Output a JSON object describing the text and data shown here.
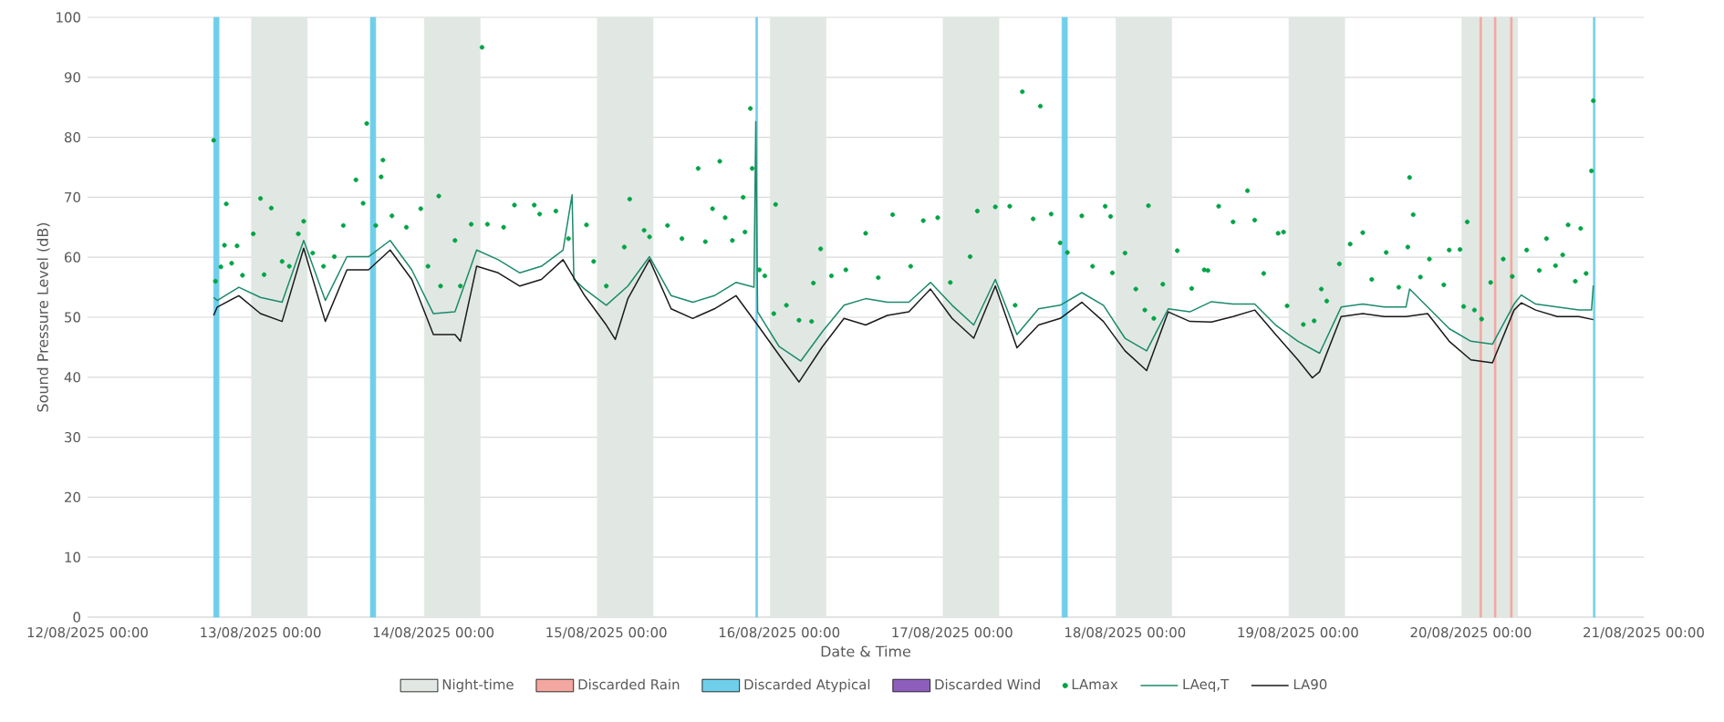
{
  "chart_data": {
    "type": "line",
    "xlabel": "Date & Time",
    "ylabel": "Sound Pressure Level (dB)",
    "xlim": [
      "2025-08-12T00:00",
      "2025-08-21T00:00"
    ],
    "xticks": [
      {
        "value": "2025-08-12T00:00",
        "label": "12/08/2025 00:00"
      },
      {
        "value": "2025-08-13T00:00",
        "label": "13/08/2025 00:00"
      },
      {
        "value": "2025-08-14T00:00",
        "label": "14/08/2025 00:00"
      },
      {
        "value": "2025-08-15T00:00",
        "label": "15/08/2025 00:00"
      },
      {
        "value": "2025-08-16T00:00",
        "label": "16/08/2025 00:00"
      },
      {
        "value": "2025-08-17T00:00",
        "label": "17/08/2025 00:00"
      },
      {
        "value": "2025-08-18T00:00",
        "label": "18/08/2025 00:00"
      },
      {
        "value": "2025-08-19T00:00",
        "label": "19/08/2025 00:00"
      },
      {
        "value": "2025-08-20T00:00",
        "label": "20/08/2025 00:00"
      },
      {
        "value": "2025-08-21T00:00",
        "label": "21/08/2025 00:00"
      }
    ],
    "ylim": [
      0,
      100
    ],
    "yticks": [
      0,
      10,
      20,
      30,
      40,
      50,
      60,
      70,
      80,
      90,
      100
    ],
    "grid": "y",
    "legend": "bottom",
    "bands": [
      {
        "axis": "x",
        "from": "2025-08-12T22:45",
        "to": "2025-08-13T06:30",
        "label": "Night-time",
        "color": "#e1e8e3"
      },
      {
        "axis": "x",
        "from": "2025-08-13T22:45",
        "to": "2025-08-14T06:30",
        "color": "#e1e8e3"
      },
      {
        "axis": "x",
        "from": "2025-08-14T22:45",
        "to": "2025-08-15T06:30",
        "color": "#e1e8e3"
      },
      {
        "axis": "x",
        "from": "2025-08-15T22:45",
        "to": "2025-08-16T06:30",
        "color": "#e1e8e3"
      },
      {
        "axis": "x",
        "from": "2025-08-16T22:45",
        "to": "2025-08-17T06:30",
        "color": "#e1e8e3"
      },
      {
        "axis": "x",
        "from": "2025-08-17T22:45",
        "to": "2025-08-18T06:30",
        "color": "#e1e8e3"
      },
      {
        "axis": "x",
        "from": "2025-08-18T22:45",
        "to": "2025-08-19T06:30",
        "color": "#e1e8e3"
      },
      {
        "axis": "x",
        "from": "2025-08-19T22:45",
        "to": "2025-08-20T06:30",
        "color": "#e1e8e3"
      },
      {
        "axis": "x",
        "from": "2025-08-20T01:15",
        "to": "2025-08-20T01:30",
        "label": "Discarded Rain",
        "color": "#f4a6a0"
      },
      {
        "axis": "x",
        "from": "2025-08-20T03:15",
        "to": "2025-08-20T03:30",
        "color": "#f4a6a0"
      },
      {
        "axis": "x",
        "from": "2025-08-20T05:30",
        "to": "2025-08-20T05:45",
        "color": "#f4a6a0"
      },
      {
        "axis": "x",
        "from": "2025-08-12T17:30",
        "to": "2025-08-12T18:15",
        "label": "Discarded Atypical",
        "color": "#6fcfeb"
      },
      {
        "axis": "x",
        "from": "2025-08-13T15:15",
        "to": "2025-08-13T16:00",
        "color": "#6fcfeb"
      },
      {
        "axis": "x",
        "from": "2025-08-15T20:45",
        "to": "2025-08-15T21:00",
        "color": "#6fcfeb"
      },
      {
        "axis": "x",
        "from": "2025-08-17T15:15",
        "to": "2025-08-17T16:00",
        "color": "#6fcfeb"
      },
      {
        "axis": "x",
        "from": "2025-08-20T17:00",
        "to": "2025-08-20T17:15",
        "color": "#6fcfeb"
      }
    ],
    "series": [
      {
        "name": "Discarded Wind",
        "type": "bar",
        "color": "#8e5ebd"
      },
      {
        "name": "LAmax",
        "type": "scatter",
        "marker": "circle",
        "color": "#00a345",
        "x": [
          "2025-08-12T17:30",
          "2025-08-12T17:45",
          "2025-08-12T18:30",
          "2025-08-12T19:00",
          "2025-08-12T19:15",
          "2025-08-12T20:00",
          "2025-08-12T20:45",
          "2025-08-12T21:30",
          "2025-08-12T23:00",
          "2025-08-13T00:00",
          "2025-08-13T00:30",
          "2025-08-13T01:30",
          "2025-08-13T03:00",
          "2025-08-13T04:00",
          "2025-08-13T05:15",
          "2025-08-13T06:00",
          "2025-08-13T07:15",
          "2025-08-13T08:45",
          "2025-08-13T10:15",
          "2025-08-13T11:30",
          "2025-08-13T13:15",
          "2025-08-13T14:15",
          "2025-08-13T14:45",
          "2025-08-13T16:00",
          "2025-08-13T16:45",
          "2025-08-13T17:00",
          "2025-08-13T18:15",
          "2025-08-13T20:15",
          "2025-08-13T22:15",
          "2025-08-13T23:15",
          "2025-08-14T00:45",
          "2025-08-14T01:00",
          "2025-08-14T03:00",
          "2025-08-14T03:45",
          "2025-08-14T05:15",
          "2025-08-14T06:45",
          "2025-08-14T07:30",
          "2025-08-14T09:45",
          "2025-08-14T11:15",
          "2025-08-14T14:00",
          "2025-08-14T14:45",
          "2025-08-14T17:00",
          "2025-08-14T18:45",
          "2025-08-14T21:15",
          "2025-08-14T22:15",
          "2025-08-15T00:00",
          "2025-08-15T02:30",
          "2025-08-15T03:15",
          "2025-08-15T05:15",
          "2025-08-15T06:00",
          "2025-08-15T08:30",
          "2025-08-15T10:30",
          "2025-08-15T12:45",
          "2025-08-15T13:45",
          "2025-08-15T14:45",
          "2025-08-15T15:45",
          "2025-08-15T16:30",
          "2025-08-15T17:30",
          "2025-08-15T19:00",
          "2025-08-15T19:15",
          "2025-08-15T20:00",
          "2025-08-15T20:15",
          "2025-08-15T21:15",
          "2025-08-15T22:00",
          "2025-08-15T23:15",
          "2025-08-15T23:30",
          "2025-08-16T01:00",
          "2025-08-16T02:45",
          "2025-08-16T04:30",
          "2025-08-16T04:45",
          "2025-08-16T05:45",
          "2025-08-16T07:15",
          "2025-08-16T09:15",
          "2025-08-16T12:00",
          "2025-08-16T13:45",
          "2025-08-16T15:45",
          "2025-08-16T18:15",
          "2025-08-16T20:00",
          "2025-08-16T22:00",
          "2025-08-16T23:45",
          "2025-08-17T02:30",
          "2025-08-17T03:30",
          "2025-08-17T06:00",
          "2025-08-17T08:00",
          "2025-08-17T08:45",
          "2025-08-17T09:45",
          "2025-08-17T11:15",
          "2025-08-17T12:15",
          "2025-08-17T13:45",
          "2025-08-17T15:00",
          "2025-08-17T16:00",
          "2025-08-17T18:00",
          "2025-08-17T19:30",
          "2025-08-17T21:15",
          "2025-08-17T22:00",
          "2025-08-17T22:15",
          "2025-08-18T00:00",
          "2025-08-18T01:30",
          "2025-08-18T02:45",
          "2025-08-18T03:15",
          "2025-08-18T04:00",
          "2025-08-18T05:15",
          "2025-08-18T07:15",
          "2025-08-18T09:15",
          "2025-08-18T11:00",
          "2025-08-18T11:30",
          "2025-08-18T13:00",
          "2025-08-18T15:00",
          "2025-08-18T17:00",
          "2025-08-18T18:00",
          "2025-08-18T19:15",
          "2025-08-18T21:15",
          "2025-08-18T22:00",
          "2025-08-18T22:30",
          "2025-08-19T00:45",
          "2025-08-19T02:15",
          "2025-08-19T03:15",
          "2025-08-19T04:00",
          "2025-08-19T05:45",
          "2025-08-19T07:15",
          "2025-08-19T09:00",
          "2025-08-19T10:15",
          "2025-08-19T12:15",
          "2025-08-19T14:00",
          "2025-08-19T15:15",
          "2025-08-19T15:30",
          "2025-08-19T16:00",
          "2025-08-19T17:00",
          "2025-08-19T18:15",
          "2025-08-19T20:15",
          "2025-08-19T21:00",
          "2025-08-19T22:30",
          "2025-08-19T23:00",
          "2025-08-19T23:30",
          "2025-08-20T00:30",
          "2025-08-20T01:30",
          "2025-08-20T02:45",
          "2025-08-20T04:30",
          "2025-08-20T05:45",
          "2025-08-20T07:45",
          "2025-08-20T09:30",
          "2025-08-20T10:30",
          "2025-08-20T11:45",
          "2025-08-20T12:45",
          "2025-08-20T13:30",
          "2025-08-20T14:30",
          "2025-08-20T15:15",
          "2025-08-20T16:00",
          "2025-08-20T16:45",
          "2025-08-20T17:00"
        ],
        "values": [
          79.5,
          56.0,
          58.4,
          62.0,
          68.9,
          59.0,
          61.9,
          57.0,
          63.9,
          69.8,
          57.1,
          68.2,
          59.3,
          58.5,
          63.9,
          66.0,
          60.7,
          58.5,
          60.1,
          65.3,
          72.9,
          69.0,
          82.3,
          65.3,
          73.4,
          76.2,
          66.9,
          65.0,
          68.1,
          58.5,
          70.2,
          55.2,
          62.8,
          55.2,
          65.5,
          95.0,
          65.5,
          65.0,
          68.7,
          68.7,
          67.2,
          67.7,
          63.1,
          65.4,
          59.3,
          55.2,
          61.7,
          69.7,
          64.5,
          63.4,
          65.3,
          63.1,
          74.8,
          62.6,
          68.1,
          76.0,
          66.6,
          62.8,
          70.0,
          64.2,
          84.8,
          74.8,
          57.9,
          56.9,
          50.6,
          68.8,
          52.0,
          49.5,
          49.3,
          55.7,
          61.4,
          56.9,
          57.9,
          64.0,
          56.6,
          67.1,
          58.5,
          66.1,
          66.6,
          55.8,
          60.1,
          67.7,
          68.4,
          68.5,
          52.0,
          87.6,
          66.4,
          85.2,
          67.2,
          62.4,
          60.8,
          66.9,
          58.5,
          68.5,
          66.8,
          57.4,
          60.7,
          54.7,
          51.2,
          68.6,
          49.8,
          55.5,
          61.1,
          54.8,
          57.9,
          57.8,
          68.5,
          65.9,
          71.1,
          66.2,
          57.3,
          64.0,
          64.2,
          51.9,
          48.8,
          49.4,
          54.7,
          52.7,
          58.9,
          62.2,
          64.1,
          56.3,
          60.8,
          55.0,
          61.7,
          73.3,
          67.1,
          56.7,
          59.7,
          55.4,
          61.2,
          61.3,
          51.8,
          65.9,
          51.2,
          49.7,
          55.8,
          59.7,
          56.8,
          61.2,
          57.8,
          63.1,
          58.6,
          60.4,
          65.4,
          56.0,
          64.8,
          57.3,
          74.4,
          86.1
        ]
      },
      {
        "name": "LAeq,T",
        "marker": "none",
        "color": "#1b8a6b",
        "x": [
          "2025-08-12T17:30",
          "2025-08-12T18:00",
          "2025-08-12T21:00",
          "2025-08-13T00:00",
          "2025-08-13T03:00",
          "2025-08-13T06:00",
          "2025-08-13T09:00",
          "2025-08-13T12:00",
          "2025-08-13T15:00",
          "2025-08-13T18:00",
          "2025-08-13T21:00",
          "2025-08-14T00:00",
          "2025-08-14T03:00",
          "2025-08-14T06:00",
          "2025-08-14T09:00",
          "2025-08-14T12:00",
          "2025-08-14T15:00",
          "2025-08-14T18:00",
          "2025-08-14T19:15",
          "2025-08-14T19:30",
          "2025-08-14T21:00",
          "2025-08-15T00:00",
          "2025-08-15T03:00",
          "2025-08-15T06:00",
          "2025-08-15T09:00",
          "2025-08-15T12:00",
          "2025-08-15T15:00",
          "2025-08-15T18:00",
          "2025-08-15T20:30",
          "2025-08-15T20:45",
          "2025-08-15T21:00",
          "2025-08-16T00:00",
          "2025-08-16T03:00",
          "2025-08-16T06:00",
          "2025-08-16T09:00",
          "2025-08-16T12:00",
          "2025-08-16T15:00",
          "2025-08-16T18:00",
          "2025-08-16T21:00",
          "2025-08-17T00:00",
          "2025-08-17T03:00",
          "2025-08-17T06:00",
          "2025-08-17T09:00",
          "2025-08-17T12:00",
          "2025-08-17T15:00",
          "2025-08-17T18:00",
          "2025-08-17T21:00",
          "2025-08-18T00:00",
          "2025-08-18T03:00",
          "2025-08-18T06:00",
          "2025-08-18T09:00",
          "2025-08-18T12:00",
          "2025-08-18T15:00",
          "2025-08-18T18:00",
          "2025-08-18T21:00",
          "2025-08-19T00:00",
          "2025-08-19T03:00",
          "2025-08-19T06:00",
          "2025-08-19T09:00",
          "2025-08-19T12:00",
          "2025-08-19T15:00",
          "2025-08-19T15:30",
          "2025-08-19T18:00",
          "2025-08-19T21:00",
          "2025-08-20T00:00",
          "2025-08-20T03:00",
          "2025-08-20T06:00",
          "2025-08-20T07:00",
          "2025-08-20T09:00",
          "2025-08-20T12:00",
          "2025-08-20T15:00",
          "2025-08-20T16:45",
          "2025-08-20T17:00"
        ],
        "values": [
          53.3,
          52.8,
          55.0,
          53.3,
          52.5,
          62.8,
          52.8,
          60.1,
          60.1,
          62.8,
          57.9,
          50.6,
          50.9,
          61.2,
          59.6,
          57.4,
          58.5,
          61.2,
          70.4,
          56.3,
          54.7,
          52.0,
          55.2,
          60.1,
          53.6,
          52.5,
          53.6,
          55.8,
          55.0,
          82.6,
          50.9,
          45.1,
          42.7,
          47.6,
          52.0,
          53.1,
          52.5,
          52.5,
          55.8,
          52.0,
          48.7,
          56.3,
          47.1,
          51.4,
          52.0,
          54.1,
          52.0,
          46.5,
          44.4,
          51.4,
          50.9,
          52.6,
          52.2,
          52.2,
          48.6,
          46.0,
          44.0,
          51.7,
          52.2,
          51.7,
          51.7,
          54.7,
          51.7,
          48.1,
          46.0,
          45.5,
          52.2,
          53.7,
          52.2,
          51.7,
          51.2,
          51.2,
          55.3
        ]
      },
      {
        "name": "LA90",
        "marker": "none",
        "color": "#1a1a1a",
        "x": [
          "2025-08-12T17:30",
          "2025-08-12T18:00",
          "2025-08-12T21:00",
          "2025-08-13T00:00",
          "2025-08-13T03:00",
          "2025-08-13T06:00",
          "2025-08-13T09:00",
          "2025-08-13T12:00",
          "2025-08-13T15:00",
          "2025-08-13T18:00",
          "2025-08-13T21:00",
          "2025-08-14T00:00",
          "2025-08-14T03:00",
          "2025-08-14T03:45",
          "2025-08-14T06:00",
          "2025-08-14T09:00",
          "2025-08-14T12:00",
          "2025-08-14T15:00",
          "2025-08-14T18:00",
          "2025-08-14T21:00",
          "2025-08-15T00:00",
          "2025-08-15T01:15",
          "2025-08-15T03:00",
          "2025-08-15T06:00",
          "2025-08-15T09:00",
          "2025-08-15T12:00",
          "2025-08-15T15:00",
          "2025-08-15T18:00",
          "2025-08-15T21:00",
          "2025-08-16T00:00",
          "2025-08-16T02:45",
          "2025-08-16T06:00",
          "2025-08-16T09:00",
          "2025-08-16T12:00",
          "2025-08-16T15:00",
          "2025-08-16T18:00",
          "2025-08-16T21:00",
          "2025-08-17T00:00",
          "2025-08-17T03:00",
          "2025-08-17T06:00",
          "2025-08-17T09:00",
          "2025-08-17T12:00",
          "2025-08-17T15:00",
          "2025-08-17T18:00",
          "2025-08-17T21:00",
          "2025-08-18T00:00",
          "2025-08-18T03:00",
          "2025-08-18T06:00",
          "2025-08-18T09:00",
          "2025-08-18T12:00",
          "2025-08-18T15:00",
          "2025-08-18T18:00",
          "2025-08-18T21:00",
          "2025-08-19T00:00",
          "2025-08-19T02:00",
          "2025-08-19T03:00",
          "2025-08-19T06:00",
          "2025-08-19T09:00",
          "2025-08-19T12:00",
          "2025-08-19T15:00",
          "2025-08-19T18:00",
          "2025-08-19T21:00",
          "2025-08-20T00:00",
          "2025-08-20T03:00",
          "2025-08-20T06:00",
          "2025-08-20T07:00",
          "2025-08-20T09:00",
          "2025-08-20T12:00",
          "2025-08-20T15:00",
          "2025-08-20T17:00"
        ],
        "values": [
          50.3,
          51.7,
          53.6,
          50.6,
          49.3,
          61.5,
          49.3,
          57.9,
          57.9,
          61.2,
          56.3,
          47.1,
          47.1,
          46.0,
          58.5,
          57.4,
          55.2,
          56.3,
          59.6,
          53.6,
          48.7,
          46.3,
          53.1,
          59.6,
          51.4,
          49.8,
          51.4,
          53.6,
          48.7,
          43.7,
          39.2,
          45.1,
          49.8,
          48.7,
          50.3,
          50.9,
          54.7,
          49.8,
          46.5,
          55.2,
          44.9,
          48.7,
          49.8,
          52.5,
          49.3,
          44.4,
          41.1,
          50.9,
          49.3,
          49.2,
          50.1,
          51.2,
          47.0,
          42.9,
          39.9,
          40.9,
          50.1,
          50.6,
          50.1,
          50.1,
          50.6,
          46.0,
          42.9,
          42.4,
          51.2,
          52.4,
          51.2,
          50.1,
          50.1,
          49.6
        ]
      }
    ]
  }
}
